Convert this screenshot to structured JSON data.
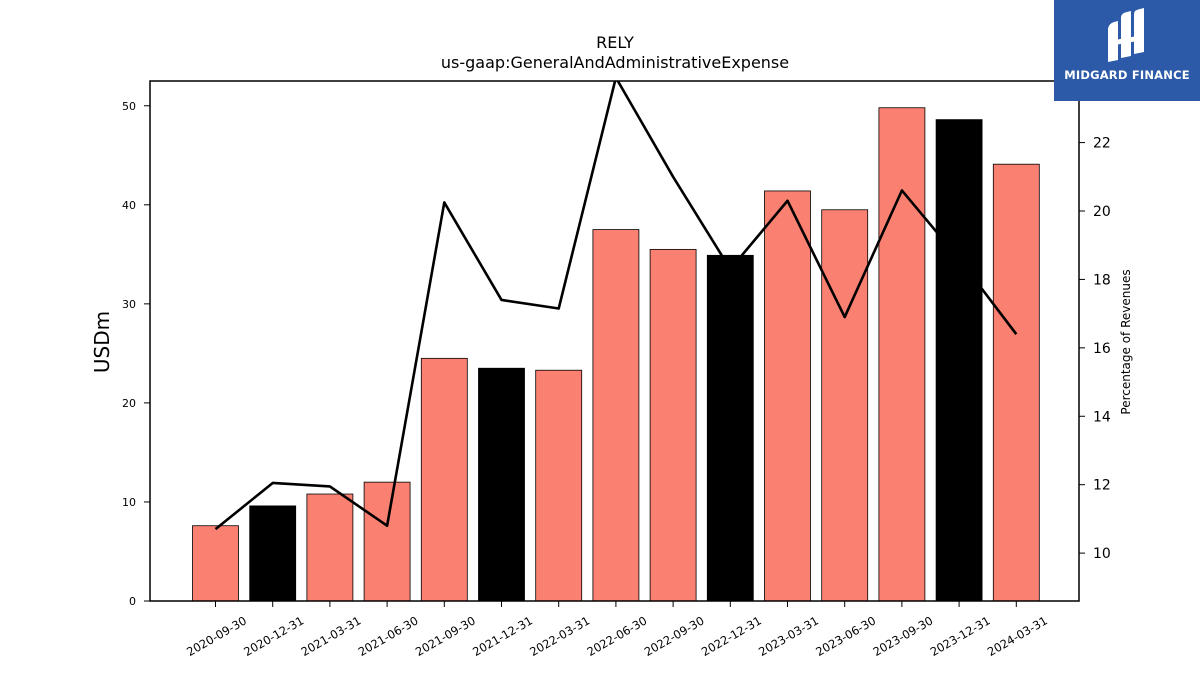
{
  "chart_data": {
    "type": "bar",
    "title": "RELY",
    "subtitle": "us-gaap:GeneralAndAdministrativeExpense",
    "ylabel": "USDm",
    "y2label": "Percentage of Revenues",
    "ylim": [
      0,
      52.5
    ],
    "y2lim": [
      8.6,
      23.8
    ],
    "yticks": [
      0,
      10,
      20,
      30,
      40,
      50
    ],
    "y2ticks": [
      10,
      12,
      14,
      16,
      18,
      20,
      22
    ],
    "categories": [
      "2020-09-30",
      "2020-12-31",
      "2021-03-31",
      "2021-06-30",
      "2021-09-30",
      "2021-12-31",
      "2022-03-31",
      "2022-06-30",
      "2022-09-30",
      "2022-12-31",
      "2023-03-31",
      "2023-06-30",
      "2023-09-30",
      "2023-12-31",
      "2024-03-31"
    ],
    "values": [
      7.6,
      9.6,
      10.8,
      12.0,
      24.5,
      23.5,
      23.3,
      37.5,
      35.5,
      34.9,
      41.4,
      39.5,
      49.8,
      48.6,
      44.1
    ],
    "bar_colors": [
      "#fa8072",
      "#000000",
      "#fa8072",
      "#fa8072",
      "#fa8072",
      "#000000",
      "#fa8072",
      "#fa8072",
      "#fa8072",
      "#000000",
      "#fa8072",
      "#fa8072",
      "#fa8072",
      "#000000",
      "#fa8072"
    ],
    "line_values": [
      10.7,
      12.05,
      11.95,
      10.8,
      20.25,
      17.4,
      17.15,
      23.9,
      21.0,
      18.3,
      20.3,
      16.9,
      20.6,
      18.6,
      16.4
    ],
    "line_color": "#000000"
  },
  "logo": {
    "text": "MIDGARD FINANCE",
    "background": "#2c5aa8"
  }
}
